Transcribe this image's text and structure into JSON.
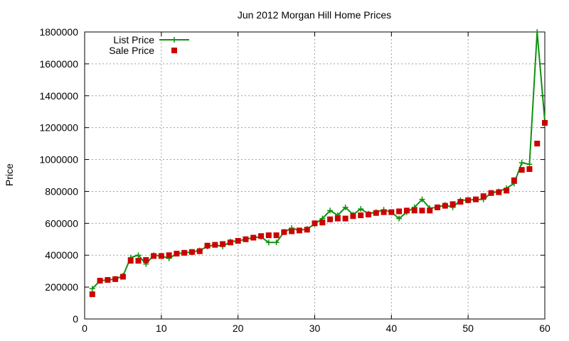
{
  "chart_data": {
    "type": "line",
    "title": "Jun 2012 Morgan Hill Home Prices",
    "xlabel": "",
    "ylabel": "Price",
    "xlim": [
      0,
      60
    ],
    "ylim": [
      0,
      1800000
    ],
    "xticks": [
      0,
      10,
      20,
      30,
      40,
      50,
      60
    ],
    "yticks": [
      0,
      200000,
      400000,
      600000,
      800000,
      1000000,
      1200000,
      1400000,
      1600000,
      1800000
    ],
    "grid": true,
    "legend_position": "top-left",
    "series": [
      {
        "name": "List Price",
        "style": "line-plus",
        "color": "#109010",
        "x": [
          1,
          2,
          3,
          4,
          5,
          6,
          7,
          8,
          9,
          10,
          11,
          12,
          13,
          14,
          15,
          16,
          17,
          18,
          19,
          20,
          21,
          22,
          23,
          24,
          25,
          26,
          27,
          28,
          29,
          30,
          31,
          32,
          33,
          34,
          35,
          36,
          37,
          38,
          39,
          40,
          41,
          42,
          43,
          44,
          45,
          46,
          47,
          48,
          49,
          50,
          51,
          52,
          53,
          54,
          55,
          56,
          57,
          58,
          59,
          60
        ],
        "values": [
          190000,
          240000,
          245000,
          250000,
          270000,
          385000,
          400000,
          345000,
          400000,
          395000,
          380000,
          410000,
          415000,
          420000,
          430000,
          455000,
          465000,
          455000,
          485000,
          490000,
          500000,
          510000,
          515000,
          480000,
          480000,
          545000,
          570000,
          555000,
          565000,
          595000,
          630000,
          680000,
          650000,
          700000,
          655000,
          690000,
          660000,
          670000,
          685000,
          670000,
          630000,
          670000,
          700000,
          750000,
          695000,
          700000,
          715000,
          700000,
          745000,
          745000,
          750000,
          750000,
          790000,
          800000,
          820000,
          850000,
          980000,
          970000,
          1800000,
          1240000
        ]
      },
      {
        "name": "Sale Price",
        "style": "square-points",
        "color": "#cc0000",
        "x": [
          1,
          2,
          3,
          4,
          5,
          6,
          7,
          8,
          9,
          10,
          11,
          12,
          13,
          14,
          15,
          16,
          17,
          18,
          19,
          20,
          21,
          22,
          23,
          24,
          25,
          26,
          27,
          28,
          29,
          30,
          31,
          32,
          33,
          34,
          35,
          36,
          37,
          38,
          39,
          40,
          41,
          42,
          43,
          44,
          45,
          46,
          47,
          48,
          49,
          50,
          51,
          52,
          53,
          54,
          55,
          56,
          57,
          58,
          59,
          60
        ],
        "values": [
          155000,
          240000,
          245000,
          250000,
          265000,
          365000,
          365000,
          370000,
          395000,
          395000,
          400000,
          410000,
          415000,
          420000,
          425000,
          460000,
          465000,
          470000,
          480000,
          490000,
          500000,
          510000,
          520000,
          525000,
          525000,
          545000,
          550000,
          555000,
          560000,
          600000,
          605000,
          625000,
          630000,
          630000,
          645000,
          650000,
          655000,
          665000,
          670000,
          670000,
          675000,
          680000,
          680000,
          680000,
          680000,
          700000,
          710000,
          720000,
          735000,
          745000,
          750000,
          770000,
          790000,
          795000,
          805000,
          870000,
          935000,
          940000,
          1100000,
          1230000
        ]
      }
    ]
  }
}
